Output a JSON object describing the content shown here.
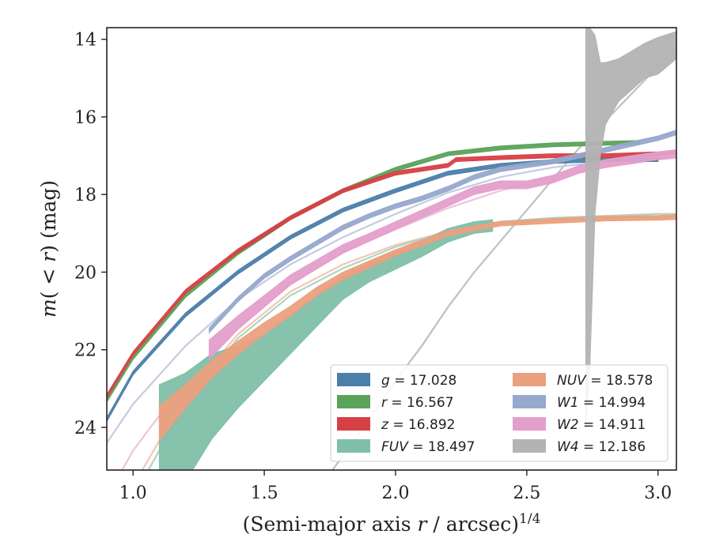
{
  "chart_data": {
    "type": "line",
    "title": "",
    "xlabel": "(Semi-major axis r / arcsec)^1/4",
    "ylabel": "m(< r) (mag)",
    "xlim": [
      0.9,
      3.07
    ],
    "ylim": [
      25.1,
      13.7
    ],
    "y_inverted": true,
    "grid": false,
    "legend_position": "lower-right",
    "xticks": [
      "1.0",
      "1.5",
      "2.0",
      "2.5",
      "3.0"
    ],
    "yticks": [
      "14",
      "16",
      "18",
      "20",
      "22",
      "24"
    ],
    "series": [
      {
        "name": "g = 17.028",
        "color": "#4c7eaa",
        "style": "band",
        "x": [
          0.9,
          1.0,
          1.2,
          1.4,
          1.6,
          1.8,
          2.0,
          2.2,
          2.4,
          2.6,
          2.8,
          3.0
        ],
        "y": [
          23.8,
          22.6,
          21.1,
          20.0,
          19.1,
          18.4,
          17.9,
          17.45,
          17.25,
          17.15,
          17.1,
          17.1
        ],
        "width": 0.1
      },
      {
        "name": "r = 16.567",
        "color": "#5aa35a",
        "style": "band",
        "x": [
          0.9,
          1.0,
          1.2,
          1.4,
          1.6,
          1.8,
          2.0,
          2.2,
          2.4,
          2.6,
          2.8,
          2.93
        ],
        "y": [
          23.3,
          22.2,
          20.6,
          19.5,
          18.6,
          17.9,
          17.35,
          16.95,
          16.8,
          16.72,
          16.68,
          16.66
        ],
        "width": 0.1
      },
      {
        "name": "z = 16.892",
        "color": "#d64045",
        "style": "band",
        "x": [
          0.9,
          1.0,
          1.2,
          1.4,
          1.6,
          1.8,
          2.0,
          2.2,
          2.23,
          2.4,
          2.6,
          2.8,
          3.0,
          3.07
        ],
        "y": [
          23.2,
          22.1,
          20.5,
          19.45,
          18.6,
          17.9,
          17.45,
          17.25,
          17.1,
          17.05,
          17.0,
          17.0,
          16.95,
          16.9
        ],
        "width": 0.1
      },
      {
        "name": "FUV = 18.497",
        "color": "#7fbfa8",
        "style": "band_var",
        "x": [
          1.1,
          1.2,
          1.3,
          1.4,
          1.5,
          1.6,
          1.7,
          1.8,
          1.9,
          2.0,
          2.1,
          2.2,
          2.3,
          2.37
        ],
        "y": [
          24.5,
          24.0,
          23.2,
          22.7,
          22.2,
          21.6,
          21.0,
          20.4,
          20.0,
          19.7,
          19.4,
          19.05,
          18.85,
          18.8
        ],
        "width": [
          3.2,
          2.8,
          2.2,
          1.6,
          1.2,
          1.0,
          0.8,
          0.6,
          0.5,
          0.45,
          0.4,
          0.35,
          0.3,
          0.3
        ]
      },
      {
        "name": "NUV = 18.578",
        "color": "#eba07e",
        "style": "band_var",
        "x": [
          1.1,
          1.2,
          1.3,
          1.4,
          1.5,
          1.6,
          1.7,
          1.8,
          1.9,
          2.0,
          2.2,
          2.4,
          2.6,
          2.8,
          3.0,
          3.07
        ],
        "y": [
          23.9,
          23.2,
          22.5,
          21.95,
          21.45,
          21.0,
          20.5,
          20.1,
          19.8,
          19.5,
          19.0,
          18.75,
          18.68,
          18.62,
          18.6,
          18.58
        ],
        "width": [
          0.9,
          0.6,
          0.45,
          0.35,
          0.3,
          0.25,
          0.22,
          0.2,
          0.18,
          0.16,
          0.14,
          0.12,
          0.12,
          0.12,
          0.12,
          0.12
        ]
      },
      {
        "name": "W1 = 14.994",
        "color": "#96a8cc",
        "style": "band",
        "x": [
          1.29,
          1.4,
          1.5,
          1.6,
          1.7,
          1.8,
          1.9,
          2.0,
          2.1,
          2.2,
          2.3,
          2.4,
          2.5,
          2.6,
          2.7,
          2.8,
          2.9,
          3.0,
          3.07
        ],
        "y": [
          21.5,
          20.7,
          20.1,
          19.65,
          19.25,
          18.85,
          18.55,
          18.3,
          18.1,
          17.85,
          17.55,
          17.35,
          17.25,
          17.15,
          17.0,
          16.85,
          16.7,
          16.55,
          16.4
        ],
        "width": 0.12
      },
      {
        "name": "W2 = 14.911",
        "color": "#e39fcb",
        "style": "band_var",
        "x": [
          1.29,
          1.4,
          1.5,
          1.6,
          1.7,
          1.8,
          1.9,
          2.0,
          2.1,
          2.2,
          2.3,
          2.4,
          2.5,
          2.6,
          2.7,
          2.8,
          2.9,
          3.0,
          3.07
        ],
        "y": [
          22.0,
          21.3,
          20.75,
          20.2,
          19.8,
          19.4,
          19.1,
          18.8,
          18.5,
          18.2,
          17.9,
          17.75,
          17.75,
          17.6,
          17.35,
          17.2,
          17.1,
          17.0,
          16.95
        ],
        "width": [
          0.5,
          0.35,
          0.3,
          0.26,
          0.24,
          0.22,
          0.2,
          0.2,
          0.2,
          0.2,
          0.2,
          0.2,
          0.2,
          0.2,
          0.2,
          0.2,
          0.2,
          0.2,
          0.2
        ]
      },
      {
        "name": "W4 = 12.186",
        "color": "#b3b3b3",
        "style": "band_bounds",
        "x": [
          2.725,
          2.74,
          2.76,
          2.78,
          2.8,
          2.85,
          2.9,
          2.95,
          3.0,
          3.07
        ],
        "y_upper": [
          13.7,
          13.7,
          13.9,
          14.6,
          14.6,
          14.5,
          14.3,
          14.1,
          13.95,
          13.8
        ],
        "y_lower": [
          24.0,
          22.5,
          18.5,
          17.0,
          16.2,
          15.6,
          15.3,
          15.0,
          14.9,
          14.5
        ]
      }
    ],
    "model_curves": [
      {
        "color": "#c0c0c0",
        "x": [
          1.76,
          1.9,
          2.0,
          2.1,
          2.2,
          2.3,
          2.4,
          2.5,
          2.6,
          2.7,
          2.8,
          2.9,
          3.0,
          3.07
        ],
        "y": [
          25.1,
          23.8,
          22.8,
          21.9,
          20.9,
          20.0,
          19.2,
          18.4,
          17.6,
          16.8,
          16.1,
          15.4,
          14.7,
          14.2
        ]
      },
      {
        "color": "#c3cce0",
        "x": [
          0.9,
          1.0,
          1.2,
          1.4,
          1.6,
          1.8,
          2.0,
          2.2,
          2.4,
          2.6,
          2.8,
          3.0,
          3.07
        ],
        "y": [
          24.4,
          23.4,
          21.9,
          20.7,
          19.8,
          19.1,
          18.5,
          17.95,
          17.55,
          17.3,
          17.15,
          17.05,
          17.05
        ]
      },
      {
        "color": "#f0c3dc",
        "x": [
          0.9,
          1.0,
          1.2,
          1.4,
          1.6,
          1.8,
          2.0,
          2.2,
          2.4,
          2.6,
          2.8,
          3.0,
          3.07
        ],
        "y": [
          25.8,
          24.6,
          22.8,
          21.4,
          20.3,
          19.5,
          18.9,
          18.35,
          17.9,
          17.55,
          17.3,
          17.1,
          17.05
        ]
      },
      {
        "color": "#f5c6b0",
        "x": [
          1.0,
          1.2,
          1.4,
          1.6,
          1.8,
          2.0,
          2.2,
          2.4,
          2.6,
          2.8,
          3.0,
          3.07
        ],
        "y": [
          25.5,
          23.2,
          21.6,
          20.5,
          19.8,
          19.3,
          18.95,
          18.75,
          18.65,
          18.6,
          18.58,
          18.58
        ]
      },
      {
        "color": "#a9d6c5",
        "x": [
          1.0,
          1.2,
          1.4,
          1.6,
          1.8,
          2.0,
          2.2,
          2.4,
          2.6,
          2.8,
          3.0,
          3.07
        ],
        "y": [
          25.8,
          23.4,
          21.7,
          20.6,
          19.9,
          19.35,
          18.95,
          18.7,
          18.6,
          18.55,
          18.5,
          18.5
        ]
      }
    ]
  }
}
